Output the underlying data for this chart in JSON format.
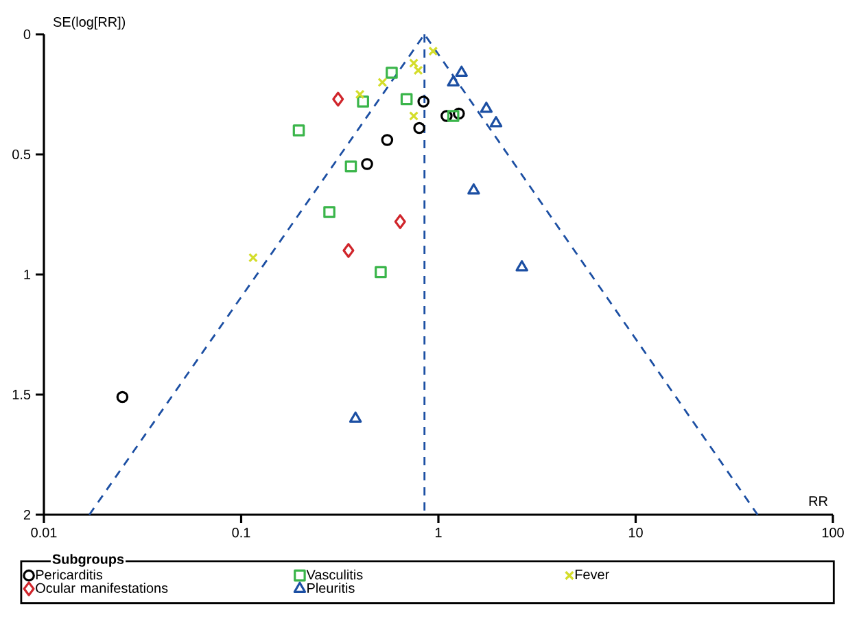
{
  "chart_data": {
    "type": "scatter",
    "xlabel": "RR",
    "ylabel": "SE(log[RR])",
    "legend_title": "Subgroups",
    "log": "x",
    "xlim": [
      0.01,
      100
    ],
    "xticks": [
      0.01,
      0.1,
      1,
      10,
      100
    ],
    "ylim": [
      2,
      0
    ],
    "yticks": [
      0,
      0.5,
      1,
      1.5,
      2
    ],
    "legend": "bottom",
    "series": [
      {
        "name": "Pericarditis",
        "color": "#000000",
        "marker": "circle",
        "x": [
          0.025,
          0.435,
          0.55,
          0.8,
          0.84,
          1.1,
          1.27
        ],
        "values": [
          1.51,
          0.54,
          0.44,
          0.39,
          0.28,
          0.34,
          0.33
        ]
      },
      {
        "name": "Vasculitis",
        "color": "#3ab54a",
        "marker": "square",
        "x": [
          0.58,
          0.415,
          0.69,
          0.196,
          0.36,
          0.28,
          0.51,
          1.19
        ],
        "values": [
          0.16,
          0.28,
          0.27,
          0.4,
          0.55,
          0.74,
          0.99,
          0.34
        ]
      },
      {
        "name": "Fever",
        "color": "#d4dd2a",
        "marker": "cross",
        "x": [
          0.115,
          0.4,
          0.52,
          0.75,
          0.79,
          0.75,
          0.94
        ],
        "values": [
          0.93,
          0.25,
          0.2,
          0.12,
          0.15,
          0.34,
          0.07
        ]
      },
      {
        "name": "Ocular manifestations",
        "color": "#d0252b",
        "marker": "diamond",
        "x": [
          0.31,
          0.64,
          0.35
        ],
        "values": [
          0.27,
          0.78,
          0.9
        ]
      },
      {
        "name": "Pleuritis",
        "color": "#1c4fa3",
        "marker": "triangle",
        "x": [
          1.31,
          1.19,
          1.75,
          1.96,
          1.51,
          2.65,
          0.38
        ],
        "values": [
          0.16,
          0.2,
          0.31,
          0.37,
          0.65,
          0.97,
          1.6
        ]
      },
      {
        "type": "line",
        "color": "#1c4fa3",
        "marker": "none",
        "line_style": "dashed",
        "x": [
          0.017,
          0.85,
          41.5
        ],
        "values": [
          2,
          0,
          2
        ]
      }
    ],
    "ref_lines": [
      {
        "axis": "x",
        "value": 0.85,
        "color": "#1c4fa3",
        "line_style": "dashed"
      }
    ]
  }
}
